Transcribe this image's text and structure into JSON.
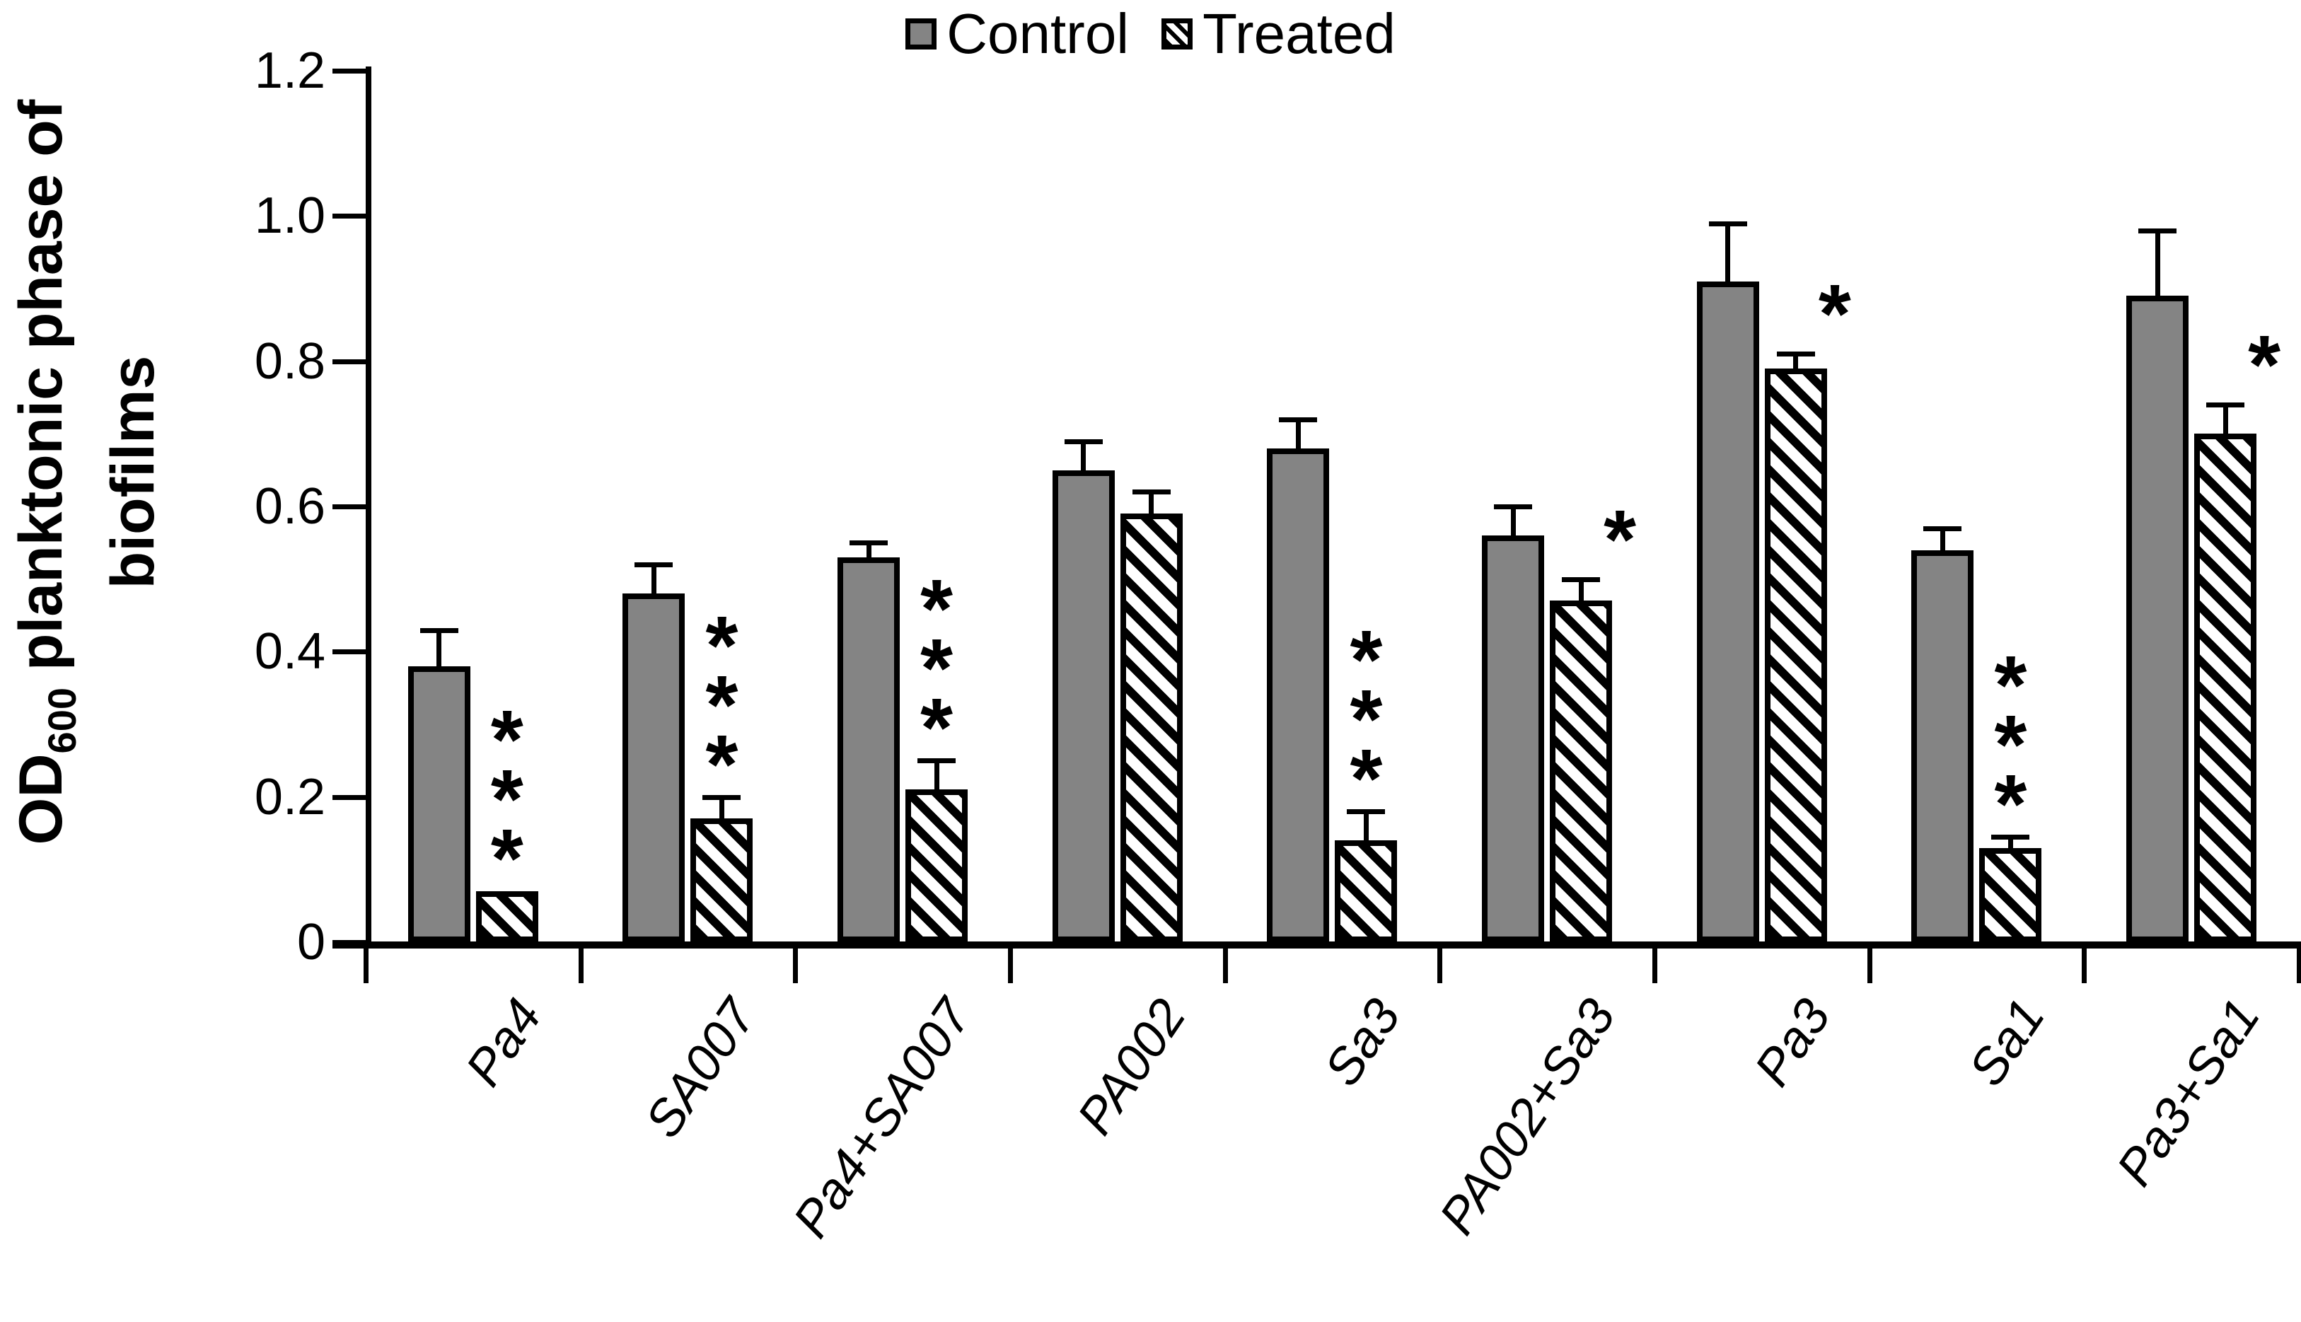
{
  "figure": {
    "background": "#ffffff",
    "bar_fill_color": "#848484",
    "bar_border_color": "#000000",
    "hatch_style": "black diagonal stripes (\\)"
  },
  "legend": {
    "items": [
      {
        "label": "Control",
        "swatch": "solid-gray-square"
      },
      {
        "label": "Treated",
        "swatch": "diagonal-hatch-square"
      }
    ]
  },
  "y_axis": {
    "title_prefix": "OD",
    "title_subscript": "600",
    "title_suffix": " planktonic phase of",
    "title_line2": "biofilms",
    "tick_labels": [
      "0",
      "0.2",
      "0.4",
      "0.6",
      "0.8",
      "1.0",
      "1.2"
    ]
  },
  "chart_data": {
    "type": "bar",
    "title": "",
    "xlabel": "",
    "ylabel": "OD600 planktonic phase of biofilms",
    "ylim": [
      0,
      1.2
    ],
    "yticks": [
      0,
      0.2,
      0.4,
      0.6,
      0.8,
      1.0,
      1.2
    ],
    "grid": false,
    "legend_position": "top-center",
    "categories": [
      "Pa4",
      "SA007",
      "Pa4+SA007",
      "PA002",
      "Sa3",
      "PA002+Sa3",
      "Pa3",
      "Sa1",
      "Pa3+Sa1"
    ],
    "series": [
      {
        "name": "Control",
        "values": [
          0.38,
          0.48,
          0.53,
          0.65,
          0.68,
          0.56,
          0.91,
          0.54,
          0.89
        ],
        "errors_plus": [
          0.05,
          0.04,
          0.02,
          0.04,
          0.04,
          0.04,
          0.08,
          0.03,
          0.09
        ]
      },
      {
        "name": "Treated",
        "values": [
          0.07,
          0.17,
          0.21,
          0.59,
          0.14,
          0.47,
          0.79,
          0.13,
          0.7
        ],
        "errors_plus": [
          0,
          0.03,
          0.04,
          0.03,
          0.04,
          0.03,
          0.02,
          0.015,
          0.04
        ]
      }
    ],
    "significance": [
      "***",
      "***",
      "***",
      "",
      "***",
      "*",
      "*",
      "***",
      "*"
    ]
  }
}
